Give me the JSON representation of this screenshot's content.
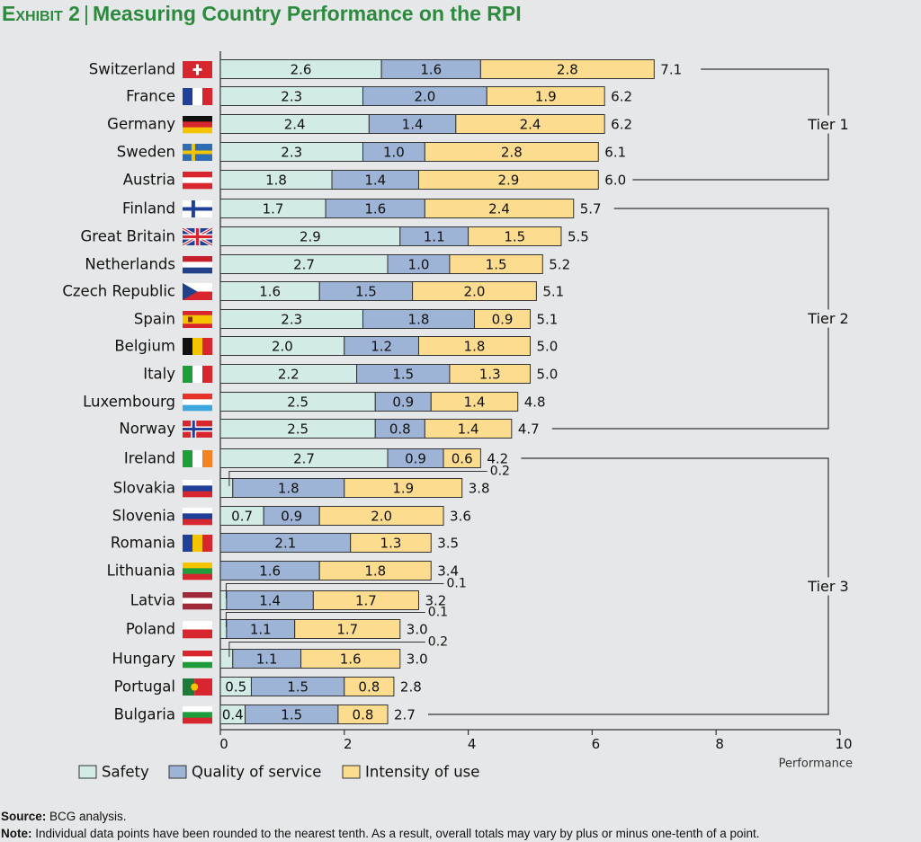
{
  "header": {
    "exhibit": "Exhibit 2",
    "separator": "|",
    "title": "Measuring Country Performance on the RPI"
  },
  "chart_data": {
    "type": "bar",
    "orientation": "horizontal",
    "stacked": true,
    "title": "Measuring Country Performance on the RPI",
    "xlabel": "Performance",
    "xlim": [
      0,
      10
    ],
    "xticks": [
      0,
      2,
      4,
      6,
      8,
      10
    ],
    "categories": [
      "Switzerland",
      "France",
      "Germany",
      "Sweden",
      "Austria",
      "Finland",
      "Great Britain",
      "Netherlands",
      "Czech Republic",
      "Spain",
      "Belgium",
      "Italy",
      "Luxembourg",
      "Norway",
      "Ireland",
      "Slovakia",
      "Slovenia",
      "Romania",
      "Lithuania",
      "Latvia",
      "Poland",
      "Hungary",
      "Portugal",
      "Bulgaria"
    ],
    "series": [
      {
        "name": "Safety",
        "color": "#d2ebe6",
        "values": [
          2.6,
          2.3,
          2.4,
          2.3,
          1.8,
          1.7,
          2.9,
          2.7,
          1.6,
          2.3,
          2.0,
          2.2,
          2.5,
          2.5,
          2.7,
          0.2,
          0.7,
          0.0,
          0.0,
          0.1,
          0.1,
          0.2,
          0.5,
          0.4
        ]
      },
      {
        "name": "Quality of service",
        "color": "#9db4d6",
        "values": [
          1.6,
          2.0,
          1.4,
          1.0,
          1.4,
          1.6,
          1.1,
          1.0,
          1.5,
          1.8,
          1.2,
          1.5,
          0.9,
          0.8,
          0.9,
          1.8,
          0.9,
          2.1,
          1.6,
          1.4,
          1.1,
          1.1,
          1.5,
          1.5
        ]
      },
      {
        "name": "Intensity of use",
        "color": "#fcdc8f",
        "values": [
          2.8,
          1.9,
          2.4,
          2.8,
          2.9,
          2.4,
          1.5,
          1.5,
          2.0,
          0.9,
          1.8,
          1.3,
          1.4,
          1.4,
          0.6,
          1.9,
          2.0,
          1.3,
          1.8,
          1.7,
          1.7,
          1.6,
          0.8,
          0.8
        ]
      }
    ],
    "totals": [
      7.1,
      6.2,
      6.2,
      6.1,
      6.0,
      5.7,
      5.5,
      5.2,
      5.1,
      5.1,
      5.0,
      5.0,
      4.8,
      4.7,
      4.2,
      3.8,
      3.6,
      3.5,
      3.4,
      3.2,
      3.0,
      3.0,
      2.8,
      2.7
    ],
    "small_callouts": {
      "Slovakia": "0.2",
      "Latvia": "0.1",
      "Poland": "0.1",
      "Hungary": "0.2"
    },
    "tiers": [
      {
        "label": "Tier 1",
        "from": "Switzerland",
        "to": "Austria"
      },
      {
        "label": "Tier 2",
        "from": "Finland",
        "to": "Norway"
      },
      {
        "label": "Tier 3",
        "from": "Ireland",
        "to": "Bulgaria"
      }
    ],
    "legend": [
      "Safety",
      "Quality of service",
      "Intensity of use"
    ],
    "legend_position": "bottom-left"
  },
  "flags": {
    "Switzerland": {
      "type": "swiss",
      "colors": [
        "#d7262e",
        "#ffffff"
      ]
    },
    "France": {
      "type": "v",
      "colors": [
        "#1f3f99",
        "#ffffff",
        "#d7262e"
      ]
    },
    "Germany": {
      "type": "h",
      "colors": [
        "#111111",
        "#d7262e",
        "#f5c400"
      ]
    },
    "Sweden": {
      "type": "nordic",
      "colors": [
        "#2e6db4",
        "#f5c400"
      ]
    },
    "Austria": {
      "type": "h",
      "colors": [
        "#d7262e",
        "#ffffff",
        "#d7262e"
      ]
    },
    "Finland": {
      "type": "nordic",
      "colors": [
        "#ffffff",
        "#1f3f99"
      ]
    },
    "Great Britain": {
      "type": "uk",
      "colors": [
        "#1f3f99",
        "#ffffff",
        "#d7262e"
      ]
    },
    "Netherlands": {
      "type": "h",
      "colors": [
        "#c8202b",
        "#ffffff",
        "#22418a"
      ]
    },
    "Czech Republic": {
      "type": "cz",
      "colors": [
        "#ffffff",
        "#d7262e",
        "#22418a"
      ]
    },
    "Spain": {
      "type": "es",
      "colors": [
        "#d7262e",
        "#f5c400",
        "#d7262e"
      ]
    },
    "Belgium": {
      "type": "v",
      "colors": [
        "#111111",
        "#f5c400",
        "#d7262e"
      ]
    },
    "Italy": {
      "type": "v",
      "colors": [
        "#1f9d3a",
        "#ffffff",
        "#d7262e"
      ]
    },
    "Luxembourg": {
      "type": "h",
      "colors": [
        "#e6332a",
        "#ffffff",
        "#3fa7e0"
      ]
    },
    "Norway": {
      "type": "nordicb",
      "colors": [
        "#d7262e",
        "#ffffff",
        "#1f3f99"
      ]
    },
    "Ireland": {
      "type": "v",
      "colors": [
        "#1f9d3a",
        "#ffffff",
        "#f58220"
      ]
    },
    "Slovakia": {
      "type": "h",
      "colors": [
        "#ffffff",
        "#1f3f99",
        "#d7262e"
      ]
    },
    "Slovenia": {
      "type": "h",
      "colors": [
        "#ffffff",
        "#1f3f99",
        "#d7262e"
      ]
    },
    "Romania": {
      "type": "v",
      "colors": [
        "#1f3f99",
        "#f5c400",
        "#d7262e"
      ]
    },
    "Lithuania": {
      "type": "h",
      "colors": [
        "#f5c400",
        "#1f9d3a",
        "#d7262e"
      ]
    },
    "Latvia": {
      "type": "h",
      "colors": [
        "#9e2a3a",
        "#ffffff",
        "#9e2a3a"
      ]
    },
    "Poland": {
      "type": "h2",
      "colors": [
        "#ffffff",
        "#d7262e"
      ]
    },
    "Hungary": {
      "type": "h",
      "colors": [
        "#d7262e",
        "#ffffff",
        "#1f9d3a"
      ]
    },
    "Portugal": {
      "type": "pt",
      "colors": [
        "#1f7a3a",
        "#d7262e",
        "#f5c400"
      ]
    },
    "Bulgaria": {
      "type": "h",
      "colors": [
        "#ffffff",
        "#1f9d3a",
        "#d7262e"
      ]
    }
  },
  "footnotes": {
    "source_label": "Source:",
    "source_text": "BCG analysis.",
    "note_label": "Note:",
    "note_text": "Individual data points have been rounded to the nearest tenth. As a result, overall totals may vary by plus or minus one-tenth of a point."
  }
}
